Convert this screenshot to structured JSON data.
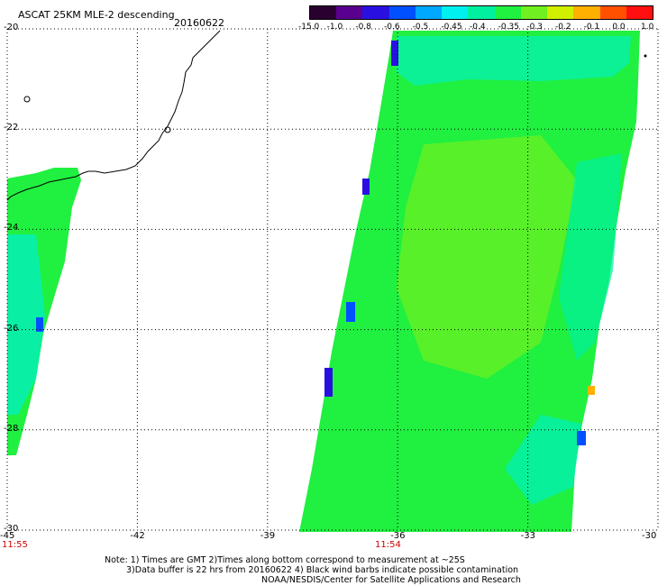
{
  "header": {
    "title": "ASCAT 25KM MLE-2 descending",
    "date": "20160622"
  },
  "colorbar": {
    "labels": [
      "-15.0",
      "-1.0",
      "-0.8",
      "-0.6",
      "-0.5",
      "-0.45",
      "-0.4",
      "-0.35",
      "-0.3",
      "-0.2",
      "-0.1",
      "0.0",
      "1.0"
    ],
    "colors": [
      "#2a0030",
      "#5a0090",
      "#2a10e0",
      "#0050ff",
      "#00a8ff",
      "#00f0f0",
      "#00f0a0",
      "#20f040",
      "#70f020",
      "#d0f000",
      "#ffb000",
      "#ff5000",
      "#ff1010"
    ]
  },
  "axes": {
    "lat_labels": [
      "-20",
      "-22",
      "-24",
      "-26",
      "-28",
      "-30"
    ],
    "lon_labels": [
      "-45",
      "-42",
      "-39",
      "-36",
      "-33",
      "-30"
    ],
    "lat_range": [
      -30,
      -20
    ],
    "lon_range": [
      -45,
      -30
    ]
  },
  "times": {
    "left": "11:55",
    "center": "11:54"
  },
  "notes": {
    "line1": "Note: 1) Times are GMT 2)Times along bottom correspond to measurement at ~25S",
    "line2": "3)Data buffer is 22 hrs from 20160622 4) Black wind barbs indicate possible contamination",
    "line3": "NOAA/NESDIS/Center for Satellite Applications and Research"
  },
  "legend_colors": {
    "map_fill": "#20f040",
    "cyan": "#00f0f0",
    "blue": "#2a10e0"
  }
}
